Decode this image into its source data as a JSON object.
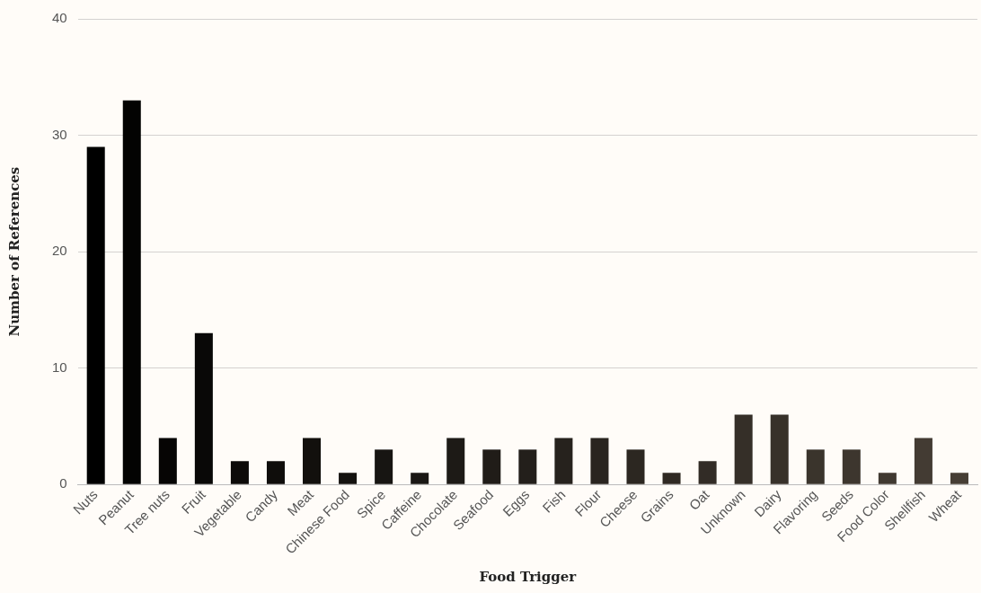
{
  "chart_data": {
    "type": "bar",
    "xlabel": "Food Trigger",
    "ylabel": "Number of References",
    "categories": [
      "Nuts",
      "Peanut",
      "Tree nuts",
      "Fruit",
      "Vegetable",
      "Candy",
      "Meat",
      "Chinese Food",
      "Spice",
      "Caffeine",
      "Chocolate",
      "Seafood",
      "Eggs",
      "Fish",
      "Flour",
      "Cheese",
      "Grains",
      "Oat",
      "Unknown",
      "Dairy",
      "Flavoring",
      "Seeds",
      "Food Color",
      "Shellfish",
      "Wheat"
    ],
    "values": [
      29,
      33,
      4,
      13,
      2,
      2,
      4,
      1,
      3,
      1,
      4,
      3,
      3,
      4,
      4,
      3,
      1,
      2,
      6,
      6,
      3,
      3,
      1,
      4,
      1
    ],
    "colors": [
      "#000000",
      "#030302",
      "#060504",
      "#090807",
      "#0c0a09",
      "#0f0d0b",
      "#12100d",
      "#14120f",
      "#171512",
      "#1a1714",
      "#1d1a16",
      "#201c18",
      "#231f1b",
      "#26221d",
      "#29241f",
      "#2c2721",
      "#2f2923",
      "#322c26",
      "#352f28",
      "#37312a",
      "#3a342c",
      "#3d362e",
      "#403931",
      "#433b33",
      "#463e35"
    ],
    "ylim": [
      0,
      40
    ],
    "yticks": [
      0,
      10,
      20,
      30,
      40
    ],
    "grid": "y",
    "legend": false
  }
}
